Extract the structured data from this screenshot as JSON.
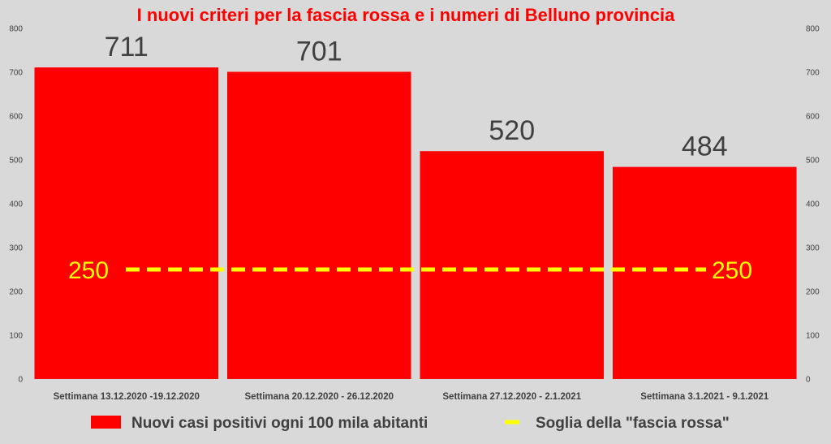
{
  "chart_data": {
    "type": "bar",
    "title": "I nuovi criteri per la fascia rossa e i numeri di Belluno provincia",
    "categories": [
      "Settimana 13.12.2020 -19.12.2020",
      "Settimana 20.12.2020 - 26.12.2020",
      "Settimana 27.12.2020 - 2.1.2021",
      "Settimana 3.1.2021 - 9.1.2021"
    ],
    "series": [
      {
        "name": "Nuovi casi positivi ogni 100 mila abitanti",
        "values": [
          711,
          701,
          520,
          484
        ],
        "color": "#ff0000"
      }
    ],
    "threshold": {
      "name": "Soglia della \"fascia rossa\"",
      "value": 250,
      "label_left": "250",
      "label_right": "250",
      "color": "#ffff00"
    },
    "ylim": [
      0,
      800
    ],
    "yticks": [
      0,
      100,
      200,
      300,
      400,
      500,
      600,
      700,
      800
    ],
    "secondary_axis": true,
    "grid": false,
    "legend_position": "bottom",
    "title_color": "#ff0000",
    "background_color": "#d9d9d9"
  }
}
